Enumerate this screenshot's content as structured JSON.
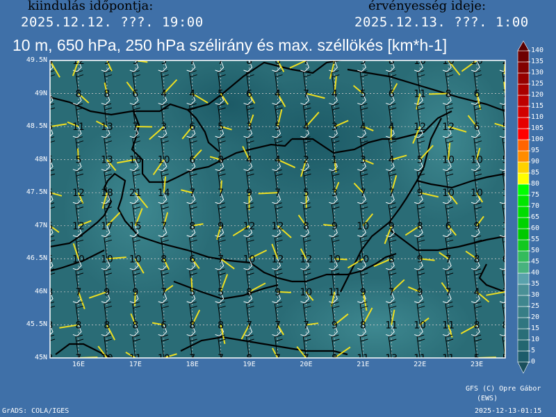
{
  "header": {
    "init_label": "kiindulás időpontja:",
    "init_time": "2025.12.12. ???. 19:00",
    "valid_label": "érvényesség ideje:",
    "valid_time": "2025.12.13. ???. 1:00",
    "title": "10 m, 650 hPa, 250 hPa szélirány és max. széllökés [km*h-1]"
  },
  "map": {
    "lat_labels": [
      "49.5N",
      "49N",
      "48.5N",
      "48N",
      "47.5N",
      "47N",
      "46.5N",
      "46N",
      "45.5N",
      "45N"
    ],
    "lon_labels": [
      "16E",
      "17E",
      "18E",
      "19E",
      "20E",
      "21E",
      "22E",
      "23E"
    ],
    "lat_range": [
      45,
      49.5
    ],
    "lon_range": [
      15.5,
      23.5
    ],
    "grid_step_deg": 0.5,
    "gust_values_kmh": [
      [
        4,
        12,
        9,
        9,
        9,
        7,
        7,
        8,
        6,
        7,
        7,
        9,
        8,
        10,
        10,
        10,
        2
      ],
      [
        1,
        8,
        8,
        6,
        4,
        4,
        5,
        6,
        4,
        7,
        4,
        5,
        6,
        11,
        8,
        6,
        7
      ],
      [
        5,
        11,
        13,
        7,
        3,
        6,
        5,
        3,
        5,
        4,
        3,
        4,
        4,
        12,
        12,
        6,
        5
      ],
      [
        5,
        5,
        13,
        16,
        10,
        6,
        8,
        4,
        4,
        2,
        1,
        3,
        4,
        5,
        10,
        10,
        5
      ],
      [
        5,
        12,
        18,
        21,
        14,
        7,
        7,
        9,
        7,
        5,
        3,
        7,
        7,
        9,
        10,
        10,
        1
      ],
      [
        5,
        12,
        17,
        15,
        7,
        8,
        9,
        12,
        12,
        8,
        9,
        10,
        9,
        8,
        6,
        9,
        1
      ],
      [
        5,
        10,
        10,
        10,
        8,
        6,
        7,
        10,
        12,
        12,
        10,
        10,
        8,
        9,
        7,
        8,
        6
      ],
      [
        3,
        7,
        9,
        9,
        7,
        5,
        5,
        8,
        9,
        10,
        11,
        9,
        7,
        9,
        7,
        4,
        1
      ],
      [
        3,
        8,
        8,
        8,
        6,
        8,
        8,
        7,
        7,
        7,
        9,
        8,
        11,
        10,
        11,
        8,
        8
      ],
      [
        3,
        7,
        10,
        11,
        10,
        7,
        7,
        8,
        7,
        7,
        8,
        11,
        13,
        11,
        11,
        5,
        5
      ]
    ],
    "colors": {
      "barb_250hPa": "#f0e020",
      "barb_650hPa": "#000000",
      "barb_10m": "#ffffff",
      "borders": "#000000"
    }
  },
  "colorbar": {
    "ticks": [
      "0",
      "5",
      "10",
      "15",
      "20",
      "25",
      "30",
      "35",
      "40",
      "45",
      "50",
      "55",
      "60",
      "65",
      "70",
      "75",
      "80",
      "85",
      "90",
      "95",
      "100",
      "105",
      "110",
      "115",
      "120",
      "125",
      "130",
      "135",
      "140"
    ],
    "colors": [
      "#1d5c6a",
      "#236670",
      "#2a6e78",
      "#307680",
      "#377e86",
      "#3f868e",
      "#4a9096",
      "#5aa2ac",
      "#48b27e",
      "#35bb5c",
      "#12c820",
      "#00c800",
      "#00d200",
      "#00dc00",
      "#00e600",
      "#00ff00",
      "#ffff00",
      "#ffd200",
      "#ff8c00",
      "#ff6400",
      "#ff0000",
      "#e60000",
      "#d20000",
      "#be0000",
      "#aa0000",
      "#960000",
      "#820000",
      "#6e0000"
    ],
    "over_color": "#5a0000",
    "under_color": "#1a4f5c"
  },
  "footer": {
    "credit_line1": "GFS (C) Opre Gábor",
    "credit_line2": "(EWS)",
    "grads": "GrADS: COLA/IGES",
    "timestamp": "2025-12-13-01:15"
  }
}
